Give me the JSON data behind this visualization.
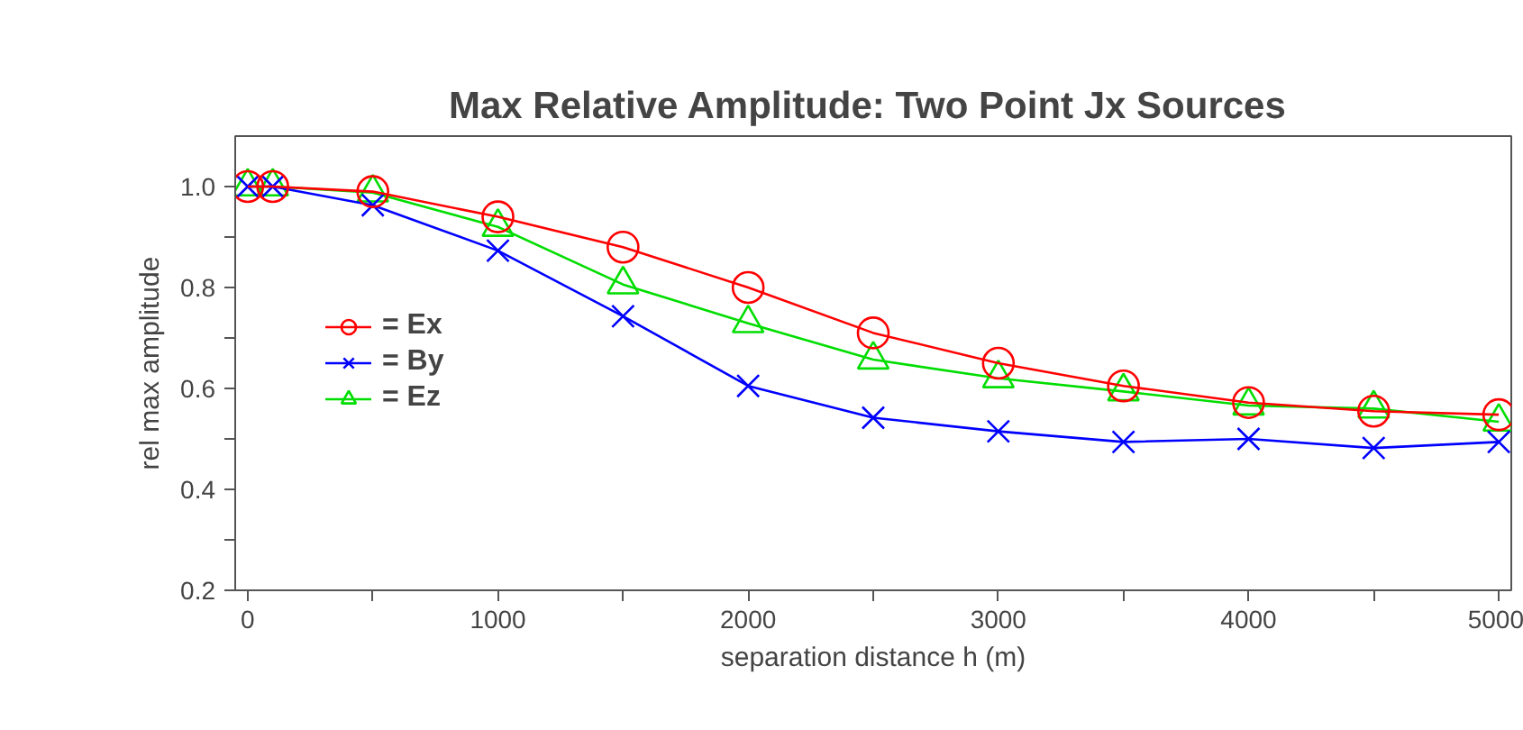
{
  "chart_data": {
    "type": "line",
    "title": "Max Relative Amplitude:  Two Point Jx Sources",
    "xlabel": "separation distance h (m)",
    "ylabel": "rel max amplitude",
    "x": [
      0,
      100,
      500,
      1000,
      1500,
      2000,
      2500,
      3000,
      3500,
      4000,
      4500,
      5000
    ],
    "series": [
      {
        "name": "= Ex",
        "color": "#ff0000",
        "marker": "circle",
        "values": [
          1.0,
          1.0,
          0.99,
          0.94,
          0.88,
          0.8,
          0.71,
          0.65,
          0.605,
          0.572,
          0.555,
          0.548
        ]
      },
      {
        "name": "= By",
        "color": "#0000ff",
        "marker": "cross",
        "values": [
          1.0,
          1.0,
          0.963,
          0.873,
          0.743,
          0.605,
          0.542,
          0.515,
          0.494,
          0.5,
          0.482,
          0.494
        ]
      },
      {
        "name": "= Ez",
        "color": "#00dd00",
        "marker": "triangle",
        "values": [
          1.0,
          1.0,
          0.988,
          0.92,
          0.806,
          0.729,
          0.657,
          0.62,
          0.594,
          0.566,
          0.56,
          0.534
        ]
      }
    ],
    "xlim": [
      -50,
      5050
    ],
    "ylim": [
      0.2,
      1.1
    ],
    "xticks": [
      0,
      {
        "value": 500,
        "label": null
      },
      1000,
      {
        "value": 1500,
        "label": null
      },
      2000,
      {
        "value": 2500,
        "label": null
      },
      3000,
      {
        "value": 3500,
        "label": null
      },
      4000,
      {
        "value": 4500,
        "label": null
      },
      5000
    ],
    "yticks": [
      {
        "value": 0.2,
        "label": "0.2"
      },
      {
        "value": 0.3,
        "label": null
      },
      {
        "value": 0.4,
        "label": "0.4"
      },
      {
        "value": 0.5,
        "label": null
      },
      {
        "value": 0.6,
        "label": "0.6"
      },
      {
        "value": 0.7,
        "label": null
      },
      {
        "value": 0.8,
        "label": "0.8"
      },
      {
        "value": 0.9,
        "label": null
      },
      {
        "value": 1.0,
        "label": "1.0"
      }
    ],
    "grid": false,
    "legend": "left",
    "line_style": "solid"
  }
}
